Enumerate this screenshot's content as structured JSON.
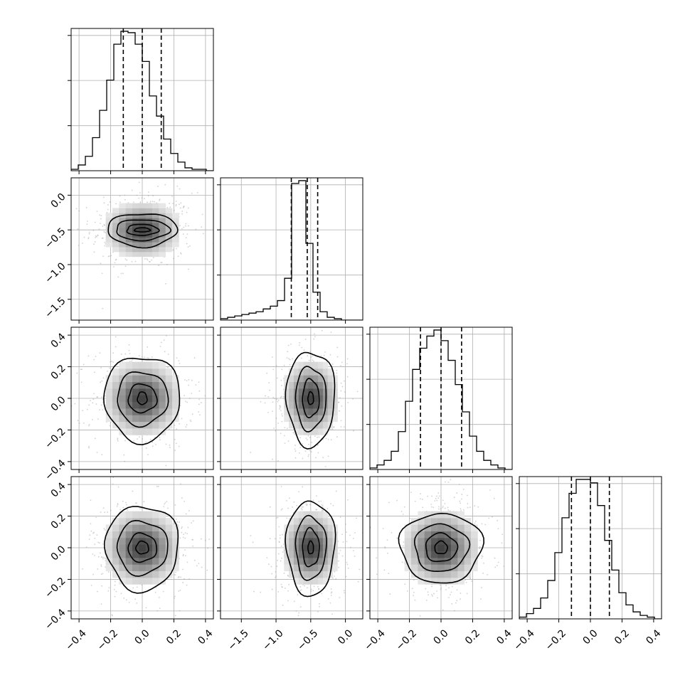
{
  "chart_data": {
    "type": "corner",
    "grid": true,
    "parameters": [
      {
        "range": [
          -0.45,
          0.45
        ],
        "quantiles": [
          -0.12,
          0.0,
          0.12
        ],
        "ticks": [
          -0.4,
          -0.2,
          0.0,
          0.2,
          0.4
        ],
        "tick_labels": [
          "−0.4",
          "−0.2",
          "0.0",
          "0.2",
          "0.4"
        ],
        "hist_bins": 20,
        "hist_counts": [
          1,
          4,
          10,
          23,
          42,
          63,
          88,
          97,
          96,
          88,
          76,
          52,
          38,
          22,
          12,
          6,
          2,
          1,
          1,
          0
        ]
      },
      {
        "range": [
          -1.8,
          0.25
        ],
        "quantiles": [
          -0.78,
          -0.55,
          -0.4
        ],
        "ticks": [
          -1.5,
          -1.0,
          -0.5,
          0.0
        ],
        "tick_labels": [
          "−1.5",
          "−1.0",
          "−0.5",
          "0.0"
        ],
        "hist_bins": 20,
        "hist_counts": [
          1,
          2,
          3,
          4,
          5,
          6,
          8,
          10,
          14,
          30,
          98,
          100,
          55,
          20,
          6,
          2,
          1,
          0,
          0,
          0
        ]
      },
      {
        "range": [
          -0.45,
          0.45
        ],
        "quantiles": [
          -0.13,
          0.0,
          0.13
        ],
        "ticks": [
          -0.4,
          -0.2,
          0.0,
          0.2,
          0.4
        ],
        "tick_labels": [
          "−0.4",
          "−0.2",
          "0.0",
          "0.2",
          "0.4"
        ],
        "hist_bins": 20,
        "hist_counts": [
          1,
          3,
          6,
          12,
          25,
          45,
          66,
          80,
          88,
          92,
          85,
          72,
          56,
          38,
          22,
          12,
          6,
          3,
          1,
          0
        ]
      },
      {
        "range": [
          -0.45,
          0.45
        ],
        "quantiles": [
          -0.12,
          0.0,
          0.12
        ],
        "ticks": [
          -0.4,
          -0.2,
          0.0,
          0.2,
          0.4
        ],
        "tick_labels": [
          "−0.4",
          "−0.2",
          "0.0",
          "0.2",
          "0.4"
        ],
        "hist_bins": 20,
        "hist_counts": [
          1,
          3,
          6,
          12,
          22,
          38,
          58,
          72,
          80,
          80,
          78,
          65,
          45,
          28,
          15,
          8,
          4,
          2,
          1,
          0
        ]
      }
    ],
    "pairs": [
      {
        "x": 0,
        "y": 1,
        "center": [
          0.0,
          -0.5
        ],
        "sigma": [
          0.12,
          0.2
        ],
        "contour_radii": [
          [
            0.22,
            0.24
          ],
          [
            0.17,
            0.15
          ],
          [
            0.1,
            0.08
          ],
          [
            0.05,
            0.03
          ]
        ]
      },
      {
        "x": 0,
        "y": 2,
        "center": [
          0.0,
          0.0
        ],
        "sigma": [
          0.12,
          0.12
        ],
        "contour_radii": [
          [
            0.24,
            0.27
          ],
          [
            0.16,
            0.17
          ],
          [
            0.09,
            0.09
          ],
          [
            0.03,
            0.04
          ]
        ]
      },
      {
        "x": 1,
        "y": 2,
        "center": [
          -0.5,
          0.0
        ],
        "sigma": [
          0.2,
          0.12
        ],
        "contour_radii": [
          [
            0.35,
            0.3
          ],
          [
            0.22,
            0.2
          ],
          [
            0.12,
            0.12
          ],
          [
            0.04,
            0.04
          ]
        ]
      },
      {
        "x": 0,
        "y": 3,
        "center": [
          0.0,
          0.0
        ],
        "sigma": [
          0.12,
          0.12
        ],
        "contour_radii": [
          [
            0.23,
            0.27
          ],
          [
            0.16,
            0.17
          ],
          [
            0.09,
            0.09
          ],
          [
            0.04,
            0.04
          ]
        ]
      },
      {
        "x": 1,
        "y": 3,
        "center": [
          -0.5,
          0.0
        ],
        "sigma": [
          0.2,
          0.12
        ],
        "contour_radii": [
          [
            0.35,
            0.3
          ],
          [
            0.22,
            0.2
          ],
          [
            0.12,
            0.12
          ],
          [
            0.04,
            0.04
          ]
        ]
      },
      {
        "x": 2,
        "y": 3,
        "center": [
          0.0,
          0.0
        ],
        "sigma": [
          0.12,
          0.12
        ],
        "contour_radii": [
          [
            0.26,
            0.22
          ],
          [
            0.17,
            0.15
          ],
          [
            0.1,
            0.09
          ],
          [
            0.04,
            0.04
          ]
        ]
      }
    ],
    "colors": {
      "line": "#000000",
      "grid": "#b0b0b0",
      "scatter": "#9a9a9a"
    }
  }
}
